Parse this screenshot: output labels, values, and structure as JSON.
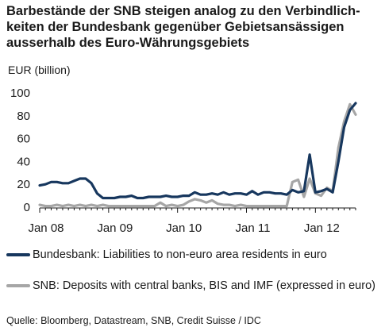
{
  "title_lines": [
    "Barbestände der SNB steigen analog zu den Verbindlich-",
    "keiten der Bundesbank gegenüber Gebietsansässigen",
    "ausserhalb des Euro-Währungsgebiets"
  ],
  "source": "Quelle: Bloomberg, Datastream, SNB, Credit Suisse / IDC",
  "chart_data": {
    "type": "line",
    "ylabel": "EUR (billion)",
    "ylim": [
      0,
      100
    ],
    "yticks": [
      0,
      20,
      40,
      60,
      80,
      100
    ],
    "xlim": [
      "2008-01",
      "2012-08"
    ],
    "xticks": [
      {
        "date": "2008-01",
        "label": "Jan 08"
      },
      {
        "date": "2009-01",
        "label": "Jan 09"
      },
      {
        "date": "2010-01",
        "label": "Jan 10"
      },
      {
        "date": "2011-01",
        "label": "Jan 11"
      },
      {
        "date": "2012-01",
        "label": "Jan 12"
      }
    ],
    "grid": false,
    "legend_position": "bottom",
    "series": [
      {
        "name": "Bundesbank: Liabilities to non-euro area residents in euro",
        "color": "#17375e",
        "points": [
          [
            "2008-01",
            19
          ],
          [
            "2008-02",
            20
          ],
          [
            "2008-03",
            22
          ],
          [
            "2008-04",
            22
          ],
          [
            "2008-05",
            21
          ],
          [
            "2008-06",
            21
          ],
          [
            "2008-07",
            23
          ],
          [
            "2008-08",
            25
          ],
          [
            "2008-09",
            25
          ],
          [
            "2008-10",
            21
          ],
          [
            "2008-11",
            12
          ],
          [
            "2008-12",
            8
          ],
          [
            "2009-01",
            8
          ],
          [
            "2009-02",
            8
          ],
          [
            "2009-03",
            9
          ],
          [
            "2009-04",
            9
          ],
          [
            "2009-05",
            10
          ],
          [
            "2009-06",
            8
          ],
          [
            "2009-07",
            8
          ],
          [
            "2009-08",
            9
          ],
          [
            "2009-09",
            9
          ],
          [
            "2009-10",
            9
          ],
          [
            "2009-11",
            10
          ],
          [
            "2009-12",
            9
          ],
          [
            "2010-01",
            9
          ],
          [
            "2010-02",
            10
          ],
          [
            "2010-03",
            10
          ],
          [
            "2010-04",
            13
          ],
          [
            "2010-05",
            11
          ],
          [
            "2010-06",
            11
          ],
          [
            "2010-07",
            12
          ],
          [
            "2010-08",
            11
          ],
          [
            "2010-09",
            13
          ],
          [
            "2010-10",
            11
          ],
          [
            "2010-11",
            12
          ],
          [
            "2010-12",
            12
          ],
          [
            "2011-01",
            11
          ],
          [
            "2011-02",
            14
          ],
          [
            "2011-03",
            11
          ],
          [
            "2011-04",
            13
          ],
          [
            "2011-05",
            13
          ],
          [
            "2011-06",
            12
          ],
          [
            "2011-07",
            12
          ],
          [
            "2011-08",
            11
          ],
          [
            "2011-09",
            15
          ],
          [
            "2011-10",
            13
          ],
          [
            "2011-11",
            14
          ],
          [
            "2011-12",
            46
          ],
          [
            "2012-01",
            13
          ],
          [
            "2012-02",
            14
          ],
          [
            "2012-03",
            16
          ],
          [
            "2012-04",
            13
          ],
          [
            "2012-05",
            40
          ],
          [
            "2012-06",
            70
          ],
          [
            "2012-07",
            85
          ],
          [
            "2012-08",
            91
          ]
        ]
      },
      {
        "name": "SNB: Deposits with central banks, BIS and IMF (expressed in euro)",
        "color": "#a6a6a6",
        "points": [
          [
            "2008-01",
            2
          ],
          [
            "2008-02",
            1
          ],
          [
            "2008-03",
            1
          ],
          [
            "2008-04",
            2
          ],
          [
            "2008-05",
            1
          ],
          [
            "2008-06",
            2
          ],
          [
            "2008-07",
            1
          ],
          [
            "2008-08",
            2
          ],
          [
            "2008-09",
            1
          ],
          [
            "2008-10",
            2
          ],
          [
            "2008-11",
            1
          ],
          [
            "2008-12",
            2
          ],
          [
            "2009-01",
            1
          ],
          [
            "2009-02",
            1
          ],
          [
            "2009-03",
            1
          ],
          [
            "2009-04",
            1
          ],
          [
            "2009-05",
            1
          ],
          [
            "2009-06",
            1
          ],
          [
            "2009-07",
            1
          ],
          [
            "2009-08",
            1
          ],
          [
            "2009-09",
            1
          ],
          [
            "2009-10",
            4
          ],
          [
            "2009-11",
            1
          ],
          [
            "2009-12",
            2
          ],
          [
            "2010-01",
            1
          ],
          [
            "2010-02",
            2
          ],
          [
            "2010-03",
            5
          ],
          [
            "2010-04",
            7
          ],
          [
            "2010-05",
            6
          ],
          [
            "2010-06",
            4
          ],
          [
            "2010-07",
            6
          ],
          [
            "2010-08",
            3
          ],
          [
            "2010-09",
            2
          ],
          [
            "2010-10",
            2
          ],
          [
            "2010-11",
            1
          ],
          [
            "2010-12",
            2
          ],
          [
            "2011-01",
            1
          ],
          [
            "2011-02",
            1
          ],
          [
            "2011-03",
            1
          ],
          [
            "2011-04",
            1
          ],
          [
            "2011-05",
            1
          ],
          [
            "2011-06",
            1
          ],
          [
            "2011-07",
            1
          ],
          [
            "2011-08",
            1
          ],
          [
            "2011-09",
            22
          ],
          [
            "2011-10",
            24
          ],
          [
            "2011-11",
            9
          ],
          [
            "2011-12",
            25
          ],
          [
            "2012-01",
            12
          ],
          [
            "2012-02",
            10
          ],
          [
            "2012-03",
            17
          ],
          [
            "2012-04",
            14
          ],
          [
            "2012-05",
            52
          ],
          [
            "2012-06",
            75
          ],
          [
            "2012-07",
            90
          ],
          [
            "2012-08",
            81
          ]
        ]
      }
    ]
  }
}
